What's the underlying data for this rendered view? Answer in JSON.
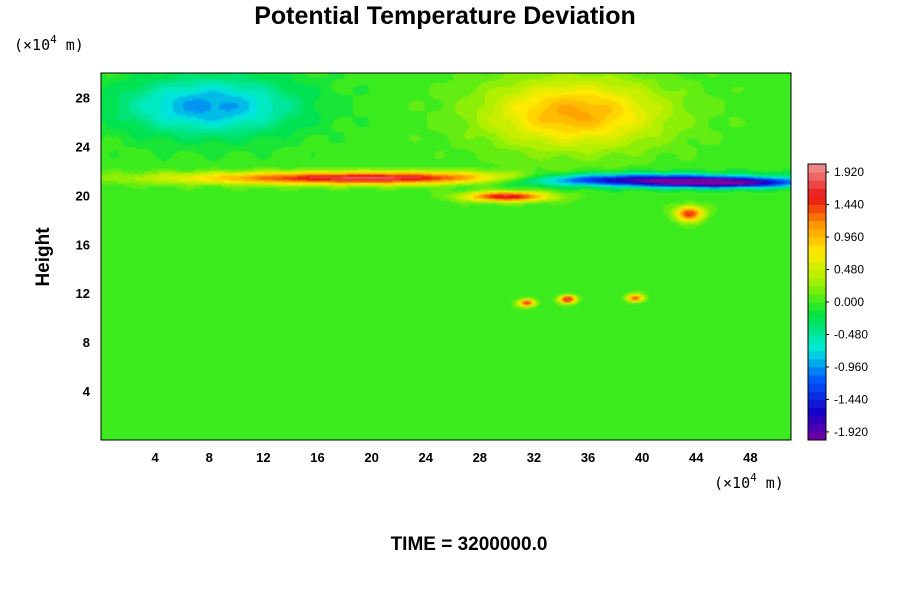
{
  "chart_data": {
    "type": "heatmap",
    "title": "Potential Temperature Deviation",
    "ylabel": "Height",
    "x_unit_prefix": "(×10",
    "x_unit_exp": "4",
    "x_unit_suffix": " m)",
    "y_unit_prefix": "(×10",
    "y_unit_exp": "4",
    "y_unit_suffix": " m)",
    "xlim": [
      0,
      51
    ],
    "ylim": [
      0,
      30
    ],
    "xticks": [
      4,
      8,
      12,
      16,
      20,
      24,
      28,
      32,
      36,
      40,
      44,
      48
    ],
    "yticks": [
      4,
      8,
      12,
      16,
      20,
      24,
      28
    ],
    "colorbar": {
      "min": -2.04,
      "max": 2.04,
      "step": 0.12,
      "labels": [
        "1.920",
        "1.440",
        "0.960",
        "0.480",
        "0.000",
        "-0.480",
        "-0.960",
        "-1.440",
        "-1.920"
      ],
      "label_values": [
        1.92,
        1.44,
        0.96,
        0.48,
        0.0,
        -0.48,
        -0.96,
        -1.44,
        -1.92
      ]
    },
    "features": [
      {
        "x": 8,
        "y": 27.3,
        "rx": 6.5,
        "ry": 2.4,
        "value": -0.95
      },
      {
        "x": 35,
        "y": 26.7,
        "rx": 6.5,
        "ry": 2.8,
        "value": 1.05
      },
      {
        "x": 21,
        "y": 21.4,
        "rx": 14,
        "ry": 0.5,
        "value": 1.9
      },
      {
        "x": 38,
        "y": 21.3,
        "rx": 10,
        "ry": 0.5,
        "value": -1.9
      },
      {
        "x": 46,
        "y": 21.0,
        "rx": 6,
        "ry": 0.4,
        "value": -1.7
      },
      {
        "x": 30,
        "y": 19.9,
        "rx": 3,
        "ry": 0.4,
        "value": 1.7
      },
      {
        "x": 43.5,
        "y": 18.5,
        "rx": 1,
        "ry": 0.6,
        "value": 1.5
      },
      {
        "x": 34.5,
        "y": 11.5,
        "rx": 0.6,
        "ry": 0.3,
        "value": 1.8
      },
      {
        "x": 31.5,
        "y": 11.2,
        "rx": 0.6,
        "ry": 0.3,
        "value": 1.5
      },
      {
        "x": 39.5,
        "y": 11.6,
        "rx": 0.6,
        "ry": 0.3,
        "value": 1.4
      }
    ]
  },
  "footer": {
    "time_text": "TIME = 3200000.0"
  }
}
